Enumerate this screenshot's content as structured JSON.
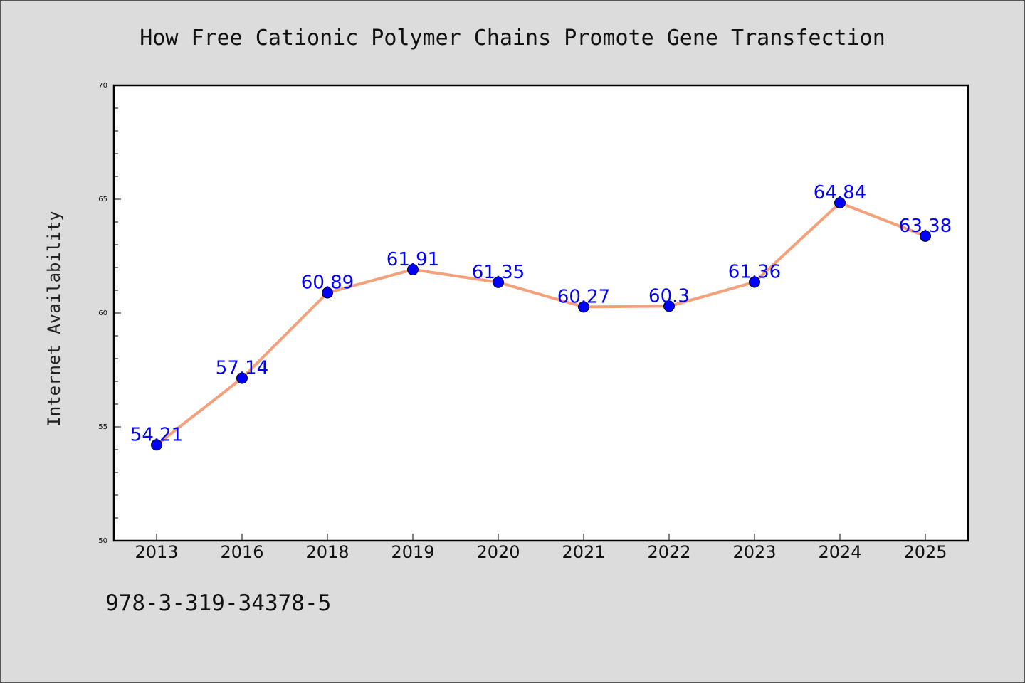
{
  "footer_text": "978-3-319-34378-5",
  "chart_data": {
    "type": "line",
    "title": "How Free Cationic Polymer Chains Promote Gene Transfection",
    "xlabel": "",
    "ylabel": "Internet Availability",
    "categories": [
      "2013",
      "2016",
      "2018",
      "2019",
      "2020",
      "2021",
      "2022",
      "2023",
      "2024",
      "2025"
    ],
    "values": [
      54.21,
      57.14,
      60.89,
      61.91,
      61.35,
      60.27,
      60.3,
      61.36,
      64.84,
      63.38
    ],
    "data_labels": [
      "54.21",
      "57.14",
      "60.89",
      "61.91",
      "61.35",
      "60.27",
      "60.3",
      "61.36",
      "64.84",
      "63.38"
    ],
    "ylim": [
      50,
      70
    ],
    "yticks": [
      50,
      55,
      60,
      65,
      70
    ],
    "grid": false,
    "colors": {
      "line": "#f4a07a",
      "marker": "#0000ff",
      "labels": "#0000ff",
      "background": "#dcdcdc",
      "plot_background": "#ffffff"
    }
  }
}
